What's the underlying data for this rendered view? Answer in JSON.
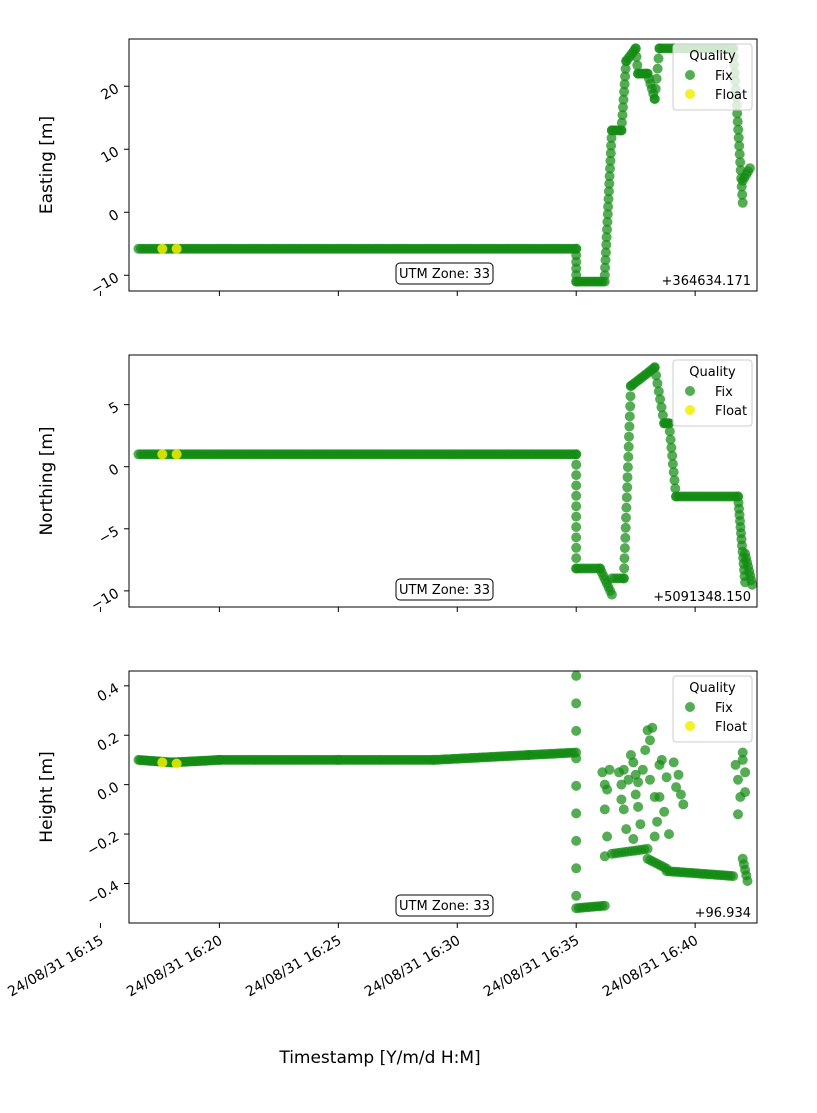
{
  "figure": {
    "xlabel": "Timestamp [Y/m/d H:M]",
    "x_ticks": [
      "24/08/31 16:15",
      "24/08/31 16:20",
      "24/08/31 16:25",
      "24/08/31 16:30",
      "24/08/31 16:35",
      "24/08/31 16:40"
    ],
    "x_range_minutes": [
      16.2,
      42.6
    ],
    "legend_title": "Quality",
    "legend_items": [
      "Fix",
      "Float"
    ],
    "colors": {
      "Fix": "#148c14",
      "Float": "#f0f000"
    },
    "utm_label": "UTM Zone: 33"
  },
  "chart_data": [
    {
      "type": "scatter",
      "ylabel": "Easting [m]",
      "offset_text": "+364634.171",
      "ylim": [
        -12.5,
        27.5
      ],
      "yticks": [
        -10,
        0,
        10,
        20
      ],
      "ytick_labels": [
        "−10",
        "0",
        "10",
        "20"
      ],
      "legend": "top-right",
      "series": [
        {
          "name": "Fix",
          "segments": [
            {
              "x0": 16.6,
              "x1": 35.0,
              "y0": -5.8,
              "y1": -5.8,
              "n": 180
            },
            {
              "x0": 35.0,
              "x1": 35.0,
              "y0": -5.8,
              "y1": -11,
              "n": 6
            },
            {
              "x0": 35.0,
              "x1": 36.2,
              "y0": -11,
              "y1": -11,
              "n": 14
            },
            {
              "x0": 36.2,
              "x1": 36.5,
              "y0": -10,
              "y1": 13,
              "n": 20
            },
            {
              "x0": 36.5,
              "x1": 36.9,
              "y0": 13,
              "y1": 13,
              "n": 6
            },
            {
              "x0": 36.9,
              "x1": 37.1,
              "y0": 13,
              "y1": 24,
              "n": 10
            },
            {
              "x0": 37.1,
              "x1": 37.5,
              "y0": 24,
              "y1": 26,
              "n": 6
            },
            {
              "x0": 37.5,
              "x1": 37.6,
              "y0": 26,
              "y1": 22,
              "n": 4
            },
            {
              "x0": 37.6,
              "x1": 38.0,
              "y0": 22,
              "y1": 22,
              "n": 6
            },
            {
              "x0": 38.0,
              "x1": 38.3,
              "y0": 22,
              "y1": 18,
              "n": 6
            },
            {
              "x0": 38.3,
              "x1": 38.5,
              "y0": 18,
              "y1": 26,
              "n": 6
            },
            {
              "x0": 38.5,
              "x1": 41.6,
              "y0": 26,
              "y1": 26,
              "n": 30
            },
            {
              "x0": 41.6,
              "x1": 42.0,
              "y0": 26,
              "y1": 1.5,
              "n": 20
            },
            {
              "x0": 42.0,
              "x1": 42.3,
              "y0": 5,
              "y1": 7,
              "n": 5
            }
          ]
        },
        {
          "name": "Float",
          "points": [
            [
              17.6,
              -5.8
            ],
            [
              18.2,
              -5.8
            ]
          ]
        }
      ]
    },
    {
      "type": "scatter",
      "ylabel": "Northing [m]",
      "offset_text": "+5091348.150",
      "ylim": [
        -11.3,
        9.0
      ],
      "yticks": [
        -10,
        -5,
        0,
        5
      ],
      "ytick_labels": [
        "−10",
        "−5",
        "0",
        "5"
      ],
      "legend": "top-right",
      "series": [
        {
          "name": "Fix",
          "segments": [
            {
              "x0": 16.6,
              "x1": 35.0,
              "y0": 1.0,
              "y1": 1.0,
              "n": 180
            },
            {
              "x0": 35.0,
              "x1": 35.0,
              "y0": 1.0,
              "y1": -8.2,
              "n": 12
            },
            {
              "x0": 35.0,
              "x1": 36.0,
              "y0": -8.2,
              "y1": -8.2,
              "n": 10
            },
            {
              "x0": 36.0,
              "x1": 36.5,
              "y0": -8.2,
              "y1": -10.3,
              "n": 8
            },
            {
              "x0": 36.5,
              "x1": 37.0,
              "y0": -9.0,
              "y1": -9.0,
              "n": 5
            },
            {
              "x0": 37.0,
              "x1": 37.3,
              "y0": -9.0,
              "y1": 6.5,
              "n": 20
            },
            {
              "x0": 37.3,
              "x1": 38.3,
              "y0": 6.5,
              "y1": 8.0,
              "n": 12
            },
            {
              "x0": 38.3,
              "x1": 38.7,
              "y0": 8.0,
              "y1": 3.5,
              "n": 8
            },
            {
              "x0": 38.7,
              "x1": 38.9,
              "y0": 3.5,
              "y1": 3.5,
              "n": 4
            },
            {
              "x0": 38.9,
              "x1": 39.2,
              "y0": 3.5,
              "y1": -2.4,
              "n": 10
            },
            {
              "x0": 39.2,
              "x1": 41.8,
              "y0": -2.4,
              "y1": -2.4,
              "n": 26
            },
            {
              "x0": 41.8,
              "x1": 42.1,
              "y0": -2.4,
              "y1": -9.3,
              "n": 15
            },
            {
              "x0": 42.1,
              "x1": 42.4,
              "y0": -7.0,
              "y1": -9.5,
              "n": 8
            }
          ]
        },
        {
          "name": "Float",
          "points": [
            [
              17.6,
              1.0
            ],
            [
              18.2,
              1.0
            ]
          ]
        }
      ]
    },
    {
      "type": "scatter",
      "ylabel": "Height [m]",
      "offset_text": "+96.934",
      "ylim": [
        -0.56,
        0.46
      ],
      "yticks": [
        -0.4,
        -0.2,
        0.0,
        0.2,
        0.4
      ],
      "ytick_labels": [
        "−0.4",
        "−0.2",
        "0.0",
        "0.2",
        "0.4"
      ],
      "legend": "top-right",
      "series": [
        {
          "name": "Fix",
          "segments": [
            {
              "x0": 16.6,
              "x1": 18.0,
              "y0": 0.1,
              "y1": 0.09,
              "n": 20
            },
            {
              "x0": 18.0,
              "x1": 20.0,
              "y0": 0.09,
              "y1": 0.1,
              "n": 25
            },
            {
              "x0": 20.0,
              "x1": 25.0,
              "y0": 0.1,
              "y1": 0.1,
              "n": 50
            },
            {
              "x0": 25.0,
              "x1": 29.0,
              "y0": 0.1,
              "y1": 0.1,
              "n": 40
            },
            {
              "x0": 29.0,
              "x1": 33.0,
              "y0": 0.1,
              "y1": 0.12,
              "n": 40
            },
            {
              "x0": 33.0,
              "x1": 35.0,
              "y0": 0.12,
              "y1": 0.13,
              "n": 20
            },
            {
              "x0": 35.0,
              "x1": 35.0,
              "y0": 0.44,
              "y1": -0.45,
              "n": 9
            },
            {
              "x0": 35.0,
              "x1": 36.2,
              "y0": -0.5,
              "y1": -0.49,
              "n": 12
            },
            {
              "x0": 36.5,
              "x1": 38.0,
              "y0": -0.28,
              "y1": -0.26,
              "n": 12
            },
            {
              "x0": 38.0,
              "x1": 38.8,
              "y0": -0.3,
              "y1": -0.34,
              "n": 8
            },
            {
              "x0": 38.8,
              "x1": 41.6,
              "y0": -0.35,
              "y1": -0.37,
              "n": 28
            },
            {
              "x0": 42.0,
              "x1": 42.2,
              "y0": -0.3,
              "y1": -0.39,
              "n": 5
            }
          ],
          "points": [
            [
              36.1,
              0.05
            ],
            [
              36.2,
              0.0
            ],
            [
              36.3,
              -0.02
            ],
            [
              36.2,
              -0.1
            ],
            [
              36.4,
              0.06
            ],
            [
              36.3,
              -0.21
            ],
            [
              36.2,
              -0.29
            ],
            [
              36.8,
              0.05
            ],
            [
              36.9,
              0.0
            ],
            [
              37.0,
              -0.1
            ],
            [
              37.1,
              -0.18
            ],
            [
              37.0,
              0.06
            ],
            [
              37.2,
              0.02
            ],
            [
              36.9,
              -0.06
            ],
            [
              37.3,
              0.12
            ],
            [
              37.4,
              0.09
            ],
            [
              37.5,
              0.04
            ],
            [
              37.6,
              0.01
            ],
            [
              37.5,
              -0.04
            ],
            [
              37.6,
              -0.09
            ],
            [
              37.7,
              -0.16
            ],
            [
              37.4,
              -0.22
            ],
            [
              37.8,
              0.06
            ],
            [
              37.9,
              0.14
            ],
            [
              38.0,
              0.22
            ],
            [
              38.1,
              0.18
            ],
            [
              38.2,
              0.23
            ],
            [
              38.1,
              0.02
            ],
            [
              38.3,
              -0.05
            ],
            [
              38.3,
              -0.21
            ],
            [
              38.4,
              -0.15
            ],
            [
              38.5,
              0.08
            ],
            [
              38.5,
              -0.05
            ],
            [
              38.6,
              0.1
            ],
            [
              38.7,
              -0.11
            ],
            [
              38.8,
              0.03
            ],
            [
              39.1,
              0.09
            ],
            [
              39.2,
              -0.01
            ],
            [
              39.3,
              0.04
            ],
            [
              39.4,
              -0.04
            ],
            [
              39.5,
              -0.08
            ],
            [
              38.9,
              -0.2
            ],
            [
              41.7,
              0.08
            ],
            [
              41.8,
              0.02
            ],
            [
              41.9,
              -0.05
            ],
            [
              42.0,
              0.1
            ],
            [
              42.1,
              -0.03
            ],
            [
              41.8,
              -0.12
            ],
            [
              42.0,
              0.13
            ],
            [
              42.1,
              0.05
            ]
          ]
        },
        {
          "name": "Float",
          "points": [
            [
              17.6,
              0.09
            ],
            [
              18.2,
              0.085
            ]
          ]
        }
      ]
    }
  ]
}
